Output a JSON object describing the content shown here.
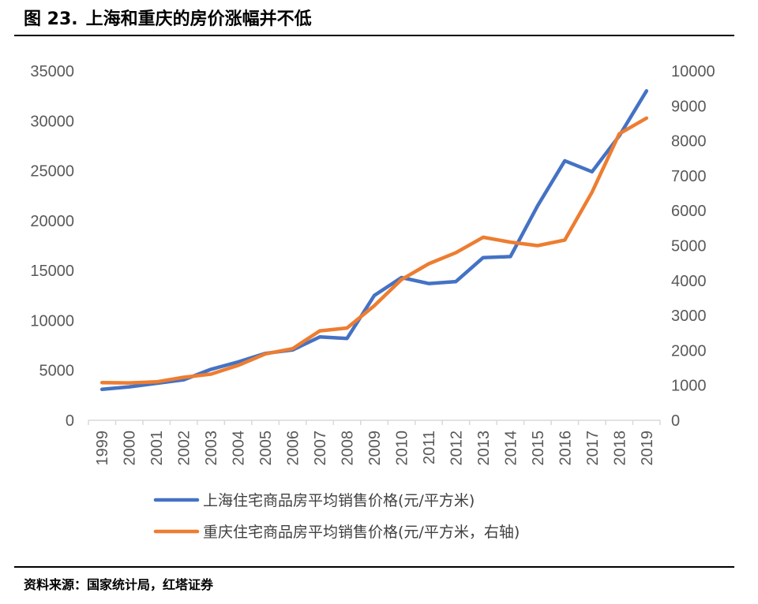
{
  "figure": {
    "number": "图 23.",
    "title": "上海和重庆的房价涨幅并不低",
    "source": "资料来源：国家统计局，红塔证券"
  },
  "chart_data": {
    "type": "line",
    "x": [
      "1999",
      "2000",
      "2001",
      "2002",
      "2003",
      "2004",
      "2005",
      "2006",
      "2007",
      "2008",
      "2009",
      "2010",
      "2011",
      "2012",
      "2013",
      "2014",
      "2015",
      "2016",
      "2017",
      "2018",
      "2019"
    ],
    "y_left": {
      "min": 0,
      "max": 35000,
      "ticks": [
        "0",
        "5000",
        "10000",
        "15000",
        "20000",
        "25000",
        "30000",
        "35000"
      ]
    },
    "y_right": {
      "min": 0,
      "max": 10000,
      "ticks": [
        "0",
        "1000",
        "2000",
        "3000",
        "4000",
        "5000",
        "6000",
        "7000",
        "8000",
        "9000",
        "10000"
      ]
    },
    "series": [
      {
        "name": "上海住宅商品房平均销售价格(元/平方米)",
        "axis": "left",
        "color": "#4472C4",
        "values": [
          3100,
          3350,
          3700,
          4050,
          5100,
          5850,
          6700,
          7050,
          8350,
          8200,
          12500,
          14300,
          13700,
          13900,
          16300,
          16400,
          21500,
          26000,
          24900,
          28500,
          33000
        ]
      },
      {
        "name": "重庆住宅商品房平均销售价格(元/平方米，右轴)",
        "axis": "right",
        "color": "#ED7D31",
        "values": [
          1080,
          1070,
          1100,
          1230,
          1320,
          1570,
          1900,
          2050,
          2560,
          2640,
          3280,
          4030,
          4480,
          4800,
          5240,
          5100,
          5000,
          5160,
          6530,
          8200,
          8650
        ]
      }
    ],
    "title": "",
    "xlabel": "",
    "ylabel": "",
    "grid": false,
    "legend_position": "bottom"
  }
}
